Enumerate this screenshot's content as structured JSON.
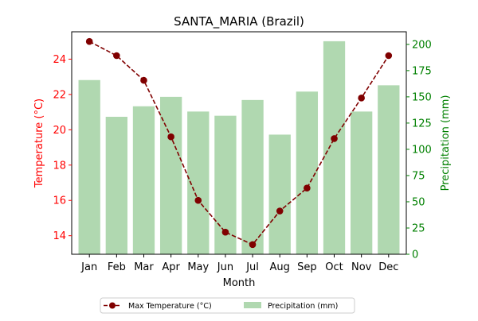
{
  "chart_data": {
    "type": "bar+line",
    "title": "SANTA_MARIA (Brazil)",
    "xlabel": "Month",
    "ylabel_left": "Temperature (°C)",
    "ylabel_right": "Precipitation (mm)",
    "categories": [
      "Jan",
      "Feb",
      "Mar",
      "Apr",
      "May",
      "Jun",
      "Jul",
      "Aug",
      "Sep",
      "Oct",
      "Nov",
      "Dec"
    ],
    "left_axis": {
      "range": [
        12.95,
        25.55
      ],
      "ticks": [
        14,
        16,
        18,
        20,
        22,
        24
      ]
    },
    "right_axis": {
      "range": [
        0,
        212
      ],
      "ticks": [
        0,
        25,
        50,
        75,
        100,
        125,
        150,
        175,
        200
      ]
    },
    "series": [
      {
        "name": "Max Temperature (°C)",
        "type": "line",
        "axis": "left",
        "style": "dashed line with circle markers",
        "values": [
          25.0,
          24.2,
          22.8,
          19.6,
          16.0,
          14.2,
          13.5,
          15.4,
          16.7,
          19.5,
          21.8,
          24.2
        ]
      },
      {
        "name": "Precipitation (mm)",
        "type": "bar",
        "axis": "right",
        "values": [
          166,
          131,
          141,
          150,
          136,
          132,
          147,
          114,
          155,
          203,
          136,
          161
        ]
      }
    ],
    "colors": {
      "line": "#800000",
      "bars": "#b0d8b0",
      "left_axis": "#ff0000",
      "right_axis": "#008000",
      "text": "#000000"
    },
    "legend": {
      "placement": "bottom-center",
      "columns": 2
    },
    "grid": false
  }
}
